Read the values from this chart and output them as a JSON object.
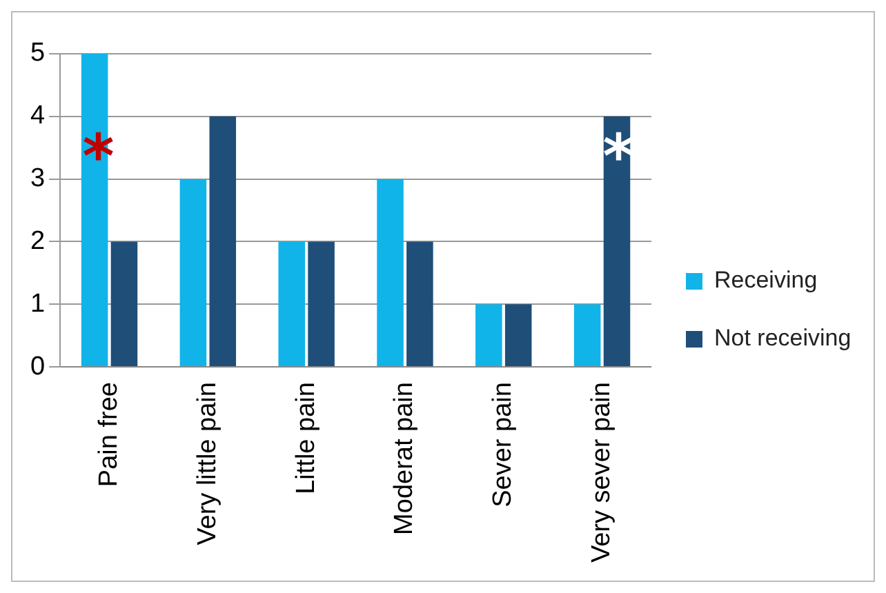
{
  "chart_data": {
    "type": "bar",
    "categories": [
      "Pain free",
      "Very little pain",
      "Little pain",
      "Moderat pain",
      "Sever pain",
      "Very sever pain"
    ],
    "series": [
      {
        "name": "Receiving",
        "color": "#10b4e8",
        "values": [
          5,
          3,
          2,
          3,
          1,
          1
        ]
      },
      {
        "name": "Not receiving",
        "color": "#1f4e79",
        "values": [
          2,
          4,
          2,
          2,
          1,
          4
        ]
      }
    ],
    "ylim": [
      0,
      5
    ],
    "yticks": [
      0,
      1,
      2,
      3,
      4,
      5
    ],
    "grid": "y",
    "legend": "right",
    "annotations": [
      {
        "text": "*",
        "x": "Pain free",
        "y": 3.5
      },
      {
        "text": "*",
        "x": "Very sever pain",
        "y": 3.5
      }
    ]
  }
}
